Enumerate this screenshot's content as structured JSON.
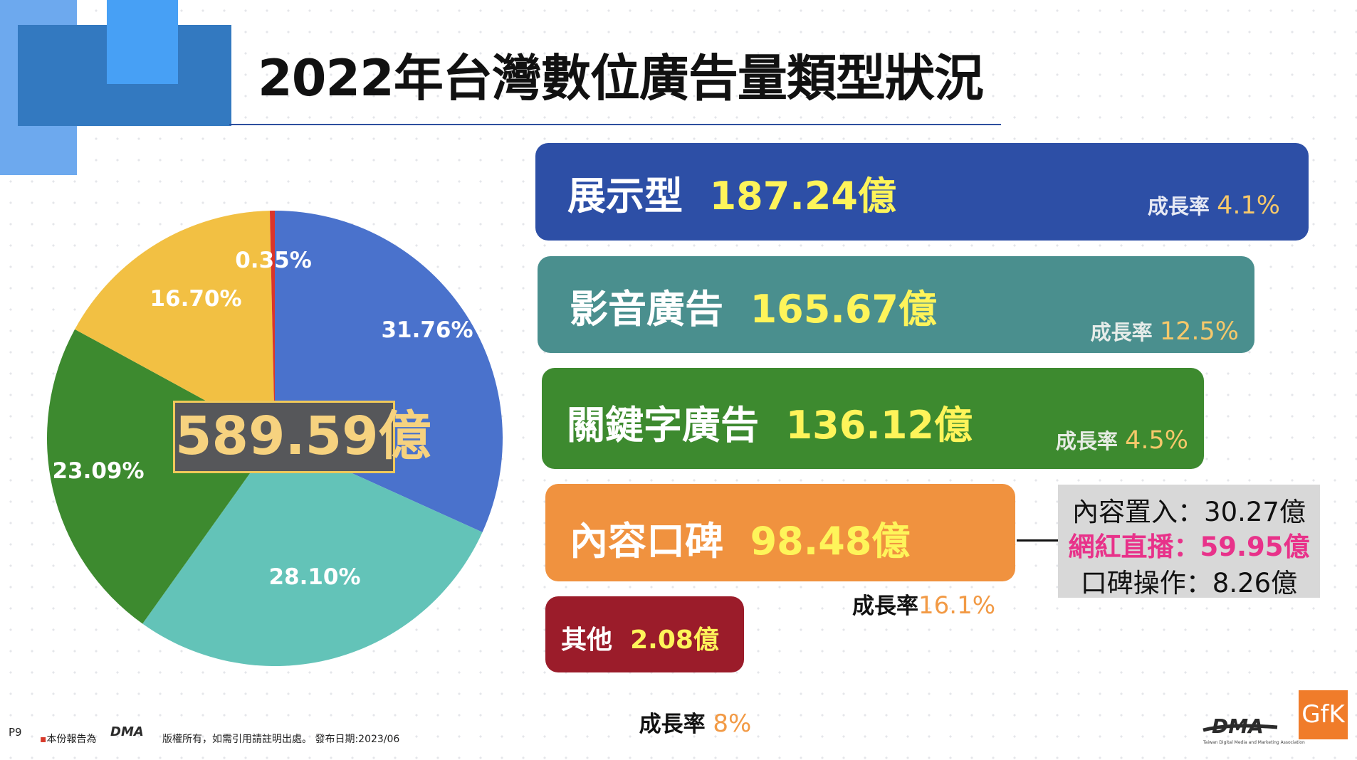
{
  "title": "2022年台灣數位廣告量類型狀況",
  "total": "589.59億",
  "pie": {
    "slices": [
      {
        "label": "31.76%",
        "value": 31.76,
        "color": "#4a72cc"
      },
      {
        "label": "28.10%",
        "value": 28.1,
        "color": "#63c3b8"
      },
      {
        "label": "23.09%",
        "value": 23.09,
        "color": "#3d8a2f"
      },
      {
        "label": "16.70%",
        "value": 16.7,
        "color": "#f2c043"
      },
      {
        "label": "0.35%",
        "value": 0.35,
        "color": "#d9352b"
      }
    ]
  },
  "chart_data": {
    "type": "pie",
    "categories": [
      "展示型",
      "影音廣告",
      "關鍵字廣告",
      "內容口碑",
      "其他"
    ],
    "values": [
      31.76,
      28.1,
      23.09,
      16.7,
      0.35
    ]
  },
  "categories": [
    {
      "name": "展示型",
      "value": "187.24億",
      "growth_label": "成長率",
      "growth_value": "4.1%",
      "color": "#2d4fa6"
    },
    {
      "name": "影音廣告",
      "value": "165.67億",
      "growth_label": "成長率",
      "growth_value": "12.5%",
      "color": "#4a8f8e"
    },
    {
      "name": "關鍵字廣告",
      "value": "136.12億",
      "growth_label": "成長率",
      "growth_value": "4.5%",
      "color": "#3d8a2f"
    },
    {
      "name": "內容口碑",
      "value": "98.48億",
      "growth_label": "成長率",
      "growth_value": "16.1%",
      "color": "#f0923f"
    },
    {
      "name": "其他",
      "value": "2.08億",
      "growth_label": "成長率 ",
      "growth_value": "8%",
      "color": "#9b1c2a"
    }
  ],
  "breakdown": [
    {
      "text": "內容置入：30.27億"
    },
    {
      "text": "網紅直播：59.95億"
    },
    {
      "text": "口碑操作：8.26億"
    }
  ],
  "footer": {
    "page": "P9",
    "note": "本份報告為",
    "rights": "版權所有，如需引用請註明出處。 發布日期:2023/06",
    "dma_sub": "Taiwan Digital Media and Marketing Association"
  },
  "logos": {
    "dma": "DMA",
    "gfk": "GfK"
  },
  "colors": {
    "title_rule": "#2d4f9e",
    "value_yellow": "#fef45a",
    "highlight_pink": "#e8328a",
    "growth_orange": "#f29a45"
  }
}
